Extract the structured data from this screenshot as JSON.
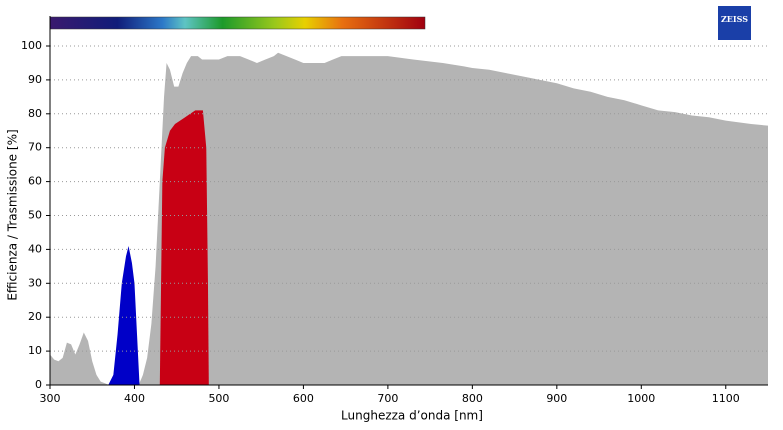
{
  "chart_data": {
    "type": "area",
    "xlabel": "Lunghezza d’onda [nm]",
    "ylabel": "Efficienza / Trasmissione [%]",
    "logo": "ZEISS",
    "xlim": [
      300,
      1150
    ],
    "xticks": [
      300,
      400,
      500,
      600,
      700,
      800,
      900,
      1000,
      1100
    ],
    "ylim": [
      0,
      100
    ],
    "yticks": [
      0,
      10,
      20,
      30,
      40,
      50,
      60,
      70,
      80,
      90,
      100
    ],
    "grid": true,
    "series": [
      {
        "color": "#b4b4b4",
        "x": [
          300,
          305,
          310,
          315,
          320,
          325,
          330,
          335,
          340,
          345,
          350,
          355,
          360,
          365,
          370,
          405,
          410,
          415,
          420,
          425,
          430,
          435,
          438,
          442,
          447,
          452,
          457,
          462,
          467,
          475,
          480,
          500,
          510,
          525,
          535,
          545,
          555,
          565,
          570,
          580,
          590,
          600,
          625,
          635,
          645,
          700,
          730,
          765,
          790,
          800,
          820,
          840,
          860,
          880,
          900,
          920,
          940,
          960,
          980,
          1000,
          1020,
          1040,
          1060,
          1080,
          1100,
          1130,
          1150
        ],
        "values": [
          9,
          7.5,
          7,
          8,
          12.5,
          12,
          9,
          12,
          15.5,
          13,
          7,
          3,
          1,
          0.5,
          0,
          0,
          3,
          8,
          18,
          35,
          60,
          85,
          95,
          93,
          88,
          88,
          92,
          95,
          97,
          97,
          96,
          96,
          97,
          97,
          96,
          95,
          96,
          97,
          98,
          97,
          96,
          95,
          95,
          96,
          97,
          97,
          96,
          95,
          94,
          93.5,
          93,
          92,
          91,
          90,
          89,
          87.5,
          86.5,
          85,
          84,
          82.5,
          81,
          80.5,
          79.5,
          79,
          78,
          77,
          76.5
        ]
      },
      {
        "color": "#0000c8",
        "x": [
          369,
          375,
          380,
          385,
          390,
          393,
          397,
          400,
          403,
          406
        ],
        "values": [
          0,
          3,
          15,
          30,
          38,
          41,
          36,
          30,
          15,
          0
        ]
      },
      {
        "color": "#c80014",
        "x": [
          430,
          433,
          436,
          442,
          448,
          454,
          460,
          466,
          472,
          481,
          485,
          487,
          488
        ],
        "values": [
          0,
          60,
          70,
          75,
          77,
          78,
          79,
          80,
          81,
          81,
          70,
          30,
          0
        ]
      }
    ]
  }
}
